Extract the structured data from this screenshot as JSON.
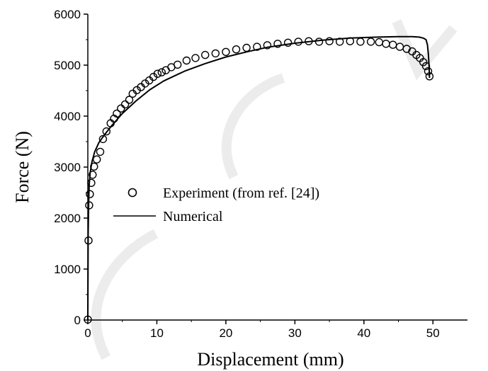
{
  "chart_data": {
    "type": "line",
    "title": "",
    "xlabel": "Displacement (mm)",
    "ylabel": "Force (N)",
    "xlim": [
      0,
      55
    ],
    "ylim": [
      0,
      6000
    ],
    "xticks": [
      0,
      10,
      20,
      30,
      40,
      50
    ],
    "yticks": [
      0,
      1000,
      2000,
      3000,
      4000,
      5000,
      6000
    ],
    "grid": false,
    "legend_position": "center",
    "series": [
      {
        "name": "Experiment (from ref. [24])",
        "style": "open-circle-markers",
        "x": [
          0,
          0.1,
          0.2,
          0.3,
          0.5,
          0.7,
          0.9,
          1.3,
          1.8,
          2.2,
          2.7,
          3.3,
          3.8,
          4.2,
          4.8,
          5.4,
          6.0,
          6.5,
          7.1,
          7.7,
          8.3,
          8.9,
          9.5,
          10.1,
          10.7,
          11.3,
          12.1,
          13.0,
          14.3,
          15.6,
          17.0,
          18.5,
          20.0,
          21.5,
          23.0,
          24.5,
          26.0,
          27.5,
          29.0,
          30.5,
          32.0,
          33.5,
          35.0,
          36.5,
          38.0,
          39.5,
          41.0,
          42.2,
          43.2,
          44.2,
          45.2,
          46.2,
          47.0,
          47.6,
          48.1,
          48.6,
          49.0,
          49.3,
          49.5
        ],
        "y": [
          10,
          1560,
          2250,
          2470,
          2690,
          2850,
          3010,
          3150,
          3300,
          3550,
          3700,
          3860,
          3950,
          4050,
          4150,
          4230,
          4320,
          4440,
          4510,
          4570,
          4640,
          4700,
          4770,
          4830,
          4860,
          4900,
          4960,
          5010,
          5090,
          5140,
          5200,
          5230,
          5260,
          5310,
          5340,
          5360,
          5390,
          5420,
          5440,
          5460,
          5470,
          5460,
          5470,
          5460,
          5470,
          5460,
          5460,
          5450,
          5420,
          5400,
          5360,
          5320,
          5270,
          5200,
          5140,
          5060,
          4980,
          4880,
          4780
        ]
      },
      {
        "name": "Numerical",
        "style": "solid-line",
        "x": [
          0,
          0.05,
          0.12,
          0.2,
          0.35,
          0.6,
          1.0,
          1.6,
          2.5,
          3.5,
          5.0,
          7.0,
          9.0,
          11.0,
          14.0,
          17.0,
          20.0,
          23.0,
          26.0,
          30.0,
          34.0,
          38.0,
          42.0,
          45.0,
          47.0,
          48.0,
          48.6,
          49.0,
          49.2,
          49.35,
          49.45,
          49.5
        ],
        "y": [
          0,
          1700,
          2300,
          2650,
          2900,
          3100,
          3300,
          3480,
          3650,
          3820,
          4050,
          4300,
          4520,
          4690,
          4880,
          5030,
          5160,
          5260,
          5350,
          5430,
          5490,
          5530,
          5550,
          5560,
          5560,
          5550,
          5530,
          5500,
          5400,
          5200,
          4950,
          4750
        ]
      }
    ]
  }
}
